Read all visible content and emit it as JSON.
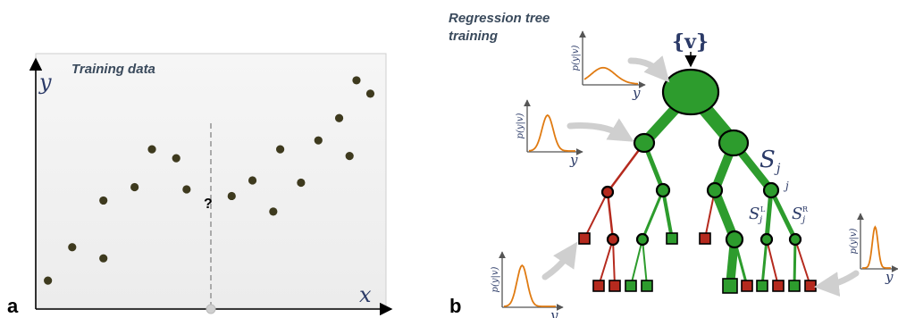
{
  "panel_a": {
    "letter": "a",
    "title": "Training data",
    "y_label": "y",
    "x_label": "x",
    "question": "?",
    "points": [
      [
        0.3,
        1.2
      ],
      [
        1.0,
        2.7
      ],
      [
        1.9,
        2.2
      ],
      [
        1.9,
        4.8
      ],
      [
        2.8,
        5.4
      ],
      [
        3.3,
        7.1
      ],
      [
        4.0,
        6.7
      ],
      [
        4.3,
        5.3
      ],
      [
        5.6,
        5.0
      ],
      [
        6.2,
        5.7
      ],
      [
        6.8,
        4.3
      ],
      [
        7.0,
        7.1
      ],
      [
        7.6,
        5.6
      ],
      [
        8.1,
        7.5
      ],
      [
        8.7,
        8.5
      ],
      [
        9.0,
        6.8
      ],
      [
        9.2,
        10.2
      ],
      [
        9.6,
        9.6
      ]
    ],
    "split_x": 5.0,
    "colors": {
      "point": "#3e3a1e",
      "axis": "#000000",
      "split": "#999999"
    }
  },
  "panel_b": {
    "letter": "b",
    "title_line1": "Regression tree",
    "title_line2": "training",
    "input": "{v}",
    "split_set": "S",
    "split_set_sub": "j",
    "node_sub": "j",
    "left_set_sup": "L",
    "right_set_sup": "R",
    "plot_ylabel": "p(y|v)",
    "plot_xlabel": "y",
    "colors": {
      "green": "#2d9c2d",
      "red": "#b52a1e",
      "curve": "#e07b12",
      "arrow": "#cccccc"
    }
  }
}
